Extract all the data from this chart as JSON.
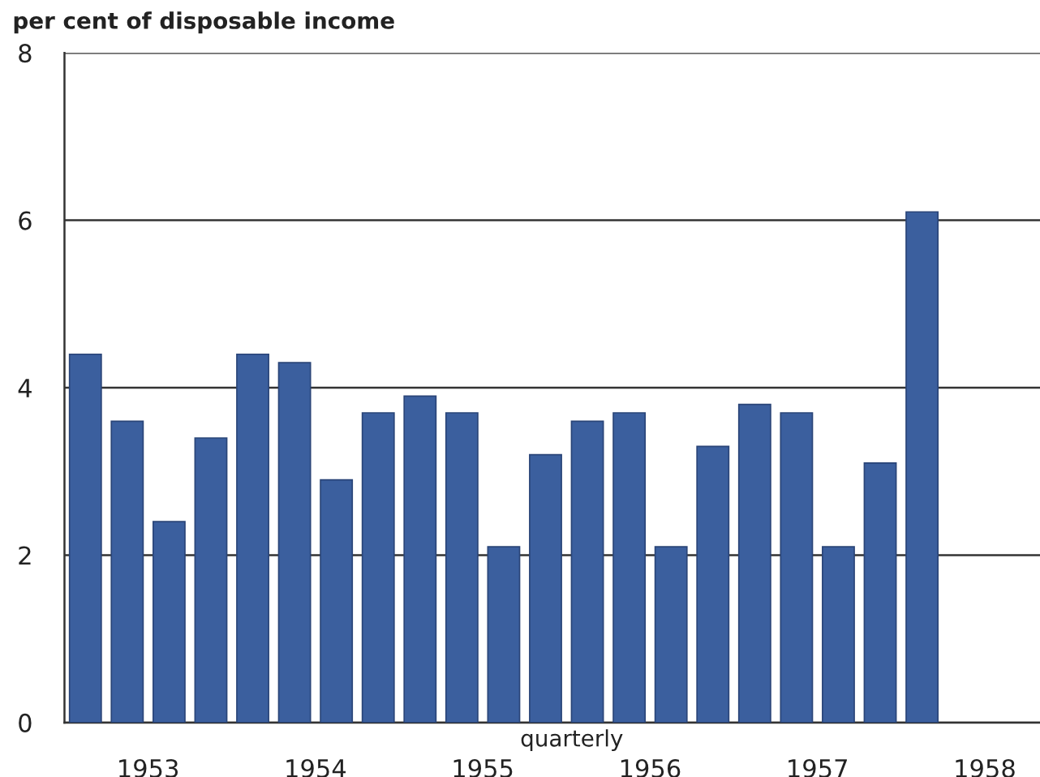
{
  "chart_data": {
    "type": "bar",
    "ylabel": "per cent of disposable income",
    "xlabel": "quarterly",
    "x": [
      1953.125,
      1953.375,
      1953.625,
      1953.875,
      1954.125,
      1954.375,
      1954.625,
      1954.875,
      1955.125,
      1955.375,
      1955.625,
      1955.875,
      1956.125,
      1956.375,
      1956.625,
      1956.875,
      1957.125,
      1957.375,
      1957.625,
      1957.875,
      1958.125
    ],
    "values": [
      4.4,
      3.6,
      2.4,
      3.4,
      4.4,
      4.3,
      2.9,
      3.7,
      3.9,
      3.7,
      2.1,
      3.2,
      3.6,
      3.7,
      2.1,
      3.3,
      3.8,
      3.7,
      2.1,
      3.1,
      6.1
    ],
    "color": "#3b5f9e",
    "xlim": [
      1953.0,
      1958.83
    ],
    "xticks": [
      {
        "value": 1953.5,
        "label": "1953"
      },
      {
        "value": 1954.5,
        "label": "1954"
      },
      {
        "value": 1955.5,
        "label": "1955"
      },
      {
        "value": 1956.5,
        "label": "1956"
      },
      {
        "value": 1957.5,
        "label": "1957"
      },
      {
        "value": 1958.5,
        "label": "1958"
      }
    ],
    "ylim": [
      0,
      8
    ],
    "yticks": [
      0,
      2,
      4,
      6,
      8
    ],
    "grid": "y"
  }
}
